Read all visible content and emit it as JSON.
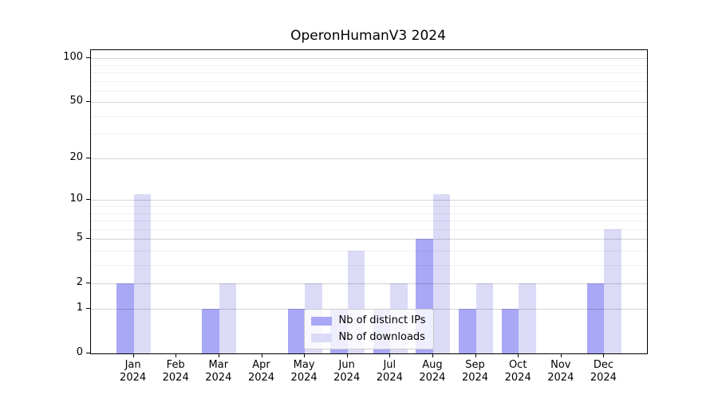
{
  "chart_data": {
    "type": "bar",
    "title": "OperonHumanV3 2024",
    "categories": [
      "Jan\n2024",
      "Feb\n2024",
      "Mar\n2024",
      "Apr\n2024",
      "May\n2024",
      "Jun\n2024",
      "Jul\n2024",
      "Aug\n2024",
      "Sep\n2024",
      "Oct\n2024",
      "Nov\n2024",
      "Dec\n2024"
    ],
    "series": [
      {
        "name": "Nb of distinct IPs",
        "color": "#a8a8f6",
        "values": [
          2,
          0,
          1,
          0,
          1,
          1,
          1,
          5,
          1,
          1,
          0,
          2
        ]
      },
      {
        "name": "Nb of downloads",
        "color": "#dbdbf8",
        "values": [
          11,
          0,
          2,
          0,
          2,
          4,
          2,
          11,
          2,
          2,
          0,
          6
        ]
      }
    ],
    "xlabel": "",
    "ylabel": "",
    "yscale": "log1p",
    "ylim": [
      0,
      115
    ],
    "yticks_major": [
      0,
      1,
      2,
      5,
      10,
      20,
      50,
      100
    ],
    "yticks_minor": [
      3,
      4,
      6,
      7,
      8,
      9,
      30,
      40,
      60,
      70,
      80,
      90
    ],
    "grid": "on",
    "legend_position": "lower center"
  },
  "legend": {
    "items": [
      {
        "label": "Nb of distinct IPs",
        "color": "#a8a8f6"
      },
      {
        "label": "Nb of downloads",
        "color": "#dbdbf8"
      }
    ]
  },
  "colors": {
    "bar_ips": "#a8a8f6",
    "bar_downloads": "#dbdbf8",
    "grid_major": "#d3d3d3",
    "grid_minor": "#ececec",
    "axis": "#000000",
    "background": "#ffffff"
  }
}
